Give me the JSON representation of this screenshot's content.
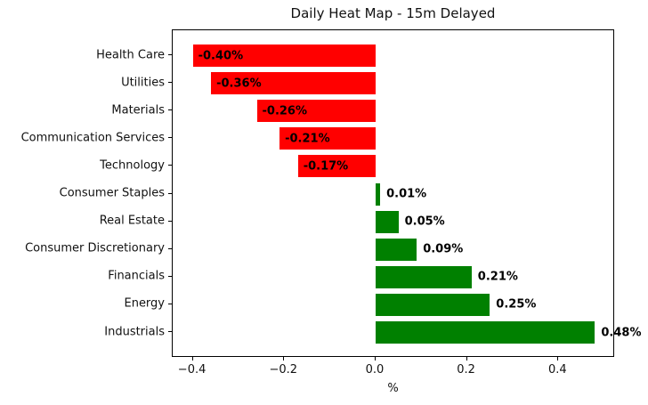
{
  "title": "Daily Heat Map - 15m Delayed",
  "chart_data": {
    "type": "bar",
    "orientation": "horizontal",
    "title": "Daily Heat Map - 15m Delayed",
    "xlabel": "%",
    "ylabel": "",
    "categories": [
      "Health Care",
      "Utilities",
      "Materials",
      "Communication Services",
      "Technology",
      "Consumer Staples",
      "Real Estate",
      "Consumer Discretionary",
      "Financials",
      "Energy",
      "Industrials"
    ],
    "values": [
      -0.4,
      -0.36,
      -0.26,
      -0.21,
      -0.17,
      0.01,
      0.05,
      0.09,
      0.21,
      0.25,
      0.48
    ],
    "value_labels": [
      "-0.40%",
      "-0.36%",
      "-0.26%",
      "-0.21%",
      "-0.17%",
      "0.01%",
      "0.05%",
      "0.09%",
      "0.21%",
      "0.25%",
      "0.48%"
    ],
    "xticks": [
      -0.4,
      -0.2,
      0.0,
      0.2,
      0.4
    ],
    "xtick_labels": [
      "−0.4",
      "−0.2",
      "0.0",
      "0.2",
      "0.4"
    ],
    "xlim": [
      -0.444,
      0.524
    ],
    "negative_color": "#ff0000",
    "positive_color": "#008000",
    "grid": false,
    "legend": false
  }
}
